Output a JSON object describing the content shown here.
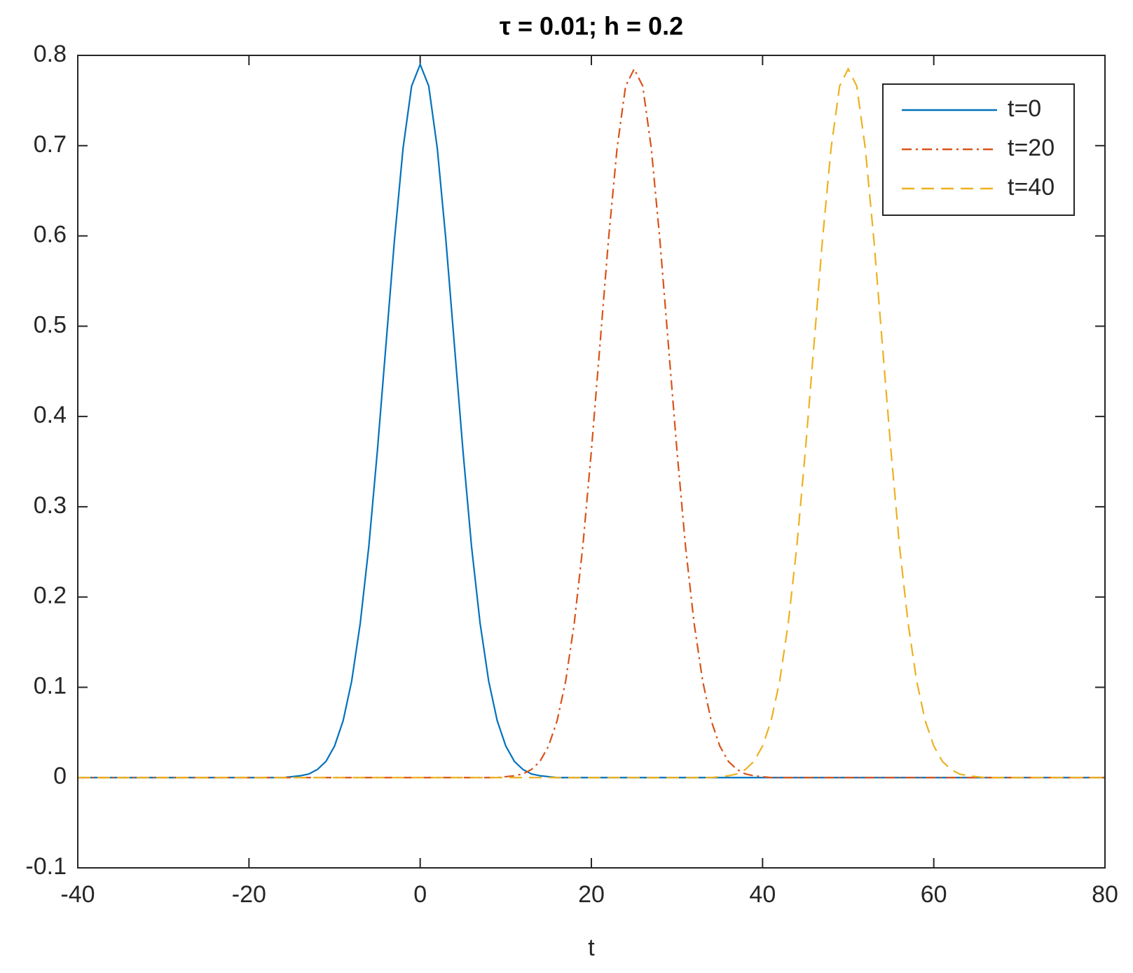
{
  "chart_data": {
    "type": "line",
    "title": "τ = 0.01; h = 0.2",
    "x_label": "t",
    "x": [
      -40,
      -39,
      -38,
      -37,
      -36,
      -35,
      -34,
      -33,
      -32,
      -31,
      -30,
      -29,
      -28,
      -27,
      -26,
      -25,
      -24,
      -23,
      -22,
      -21,
      -20,
      -19,
      -18,
      -17,
      -16,
      -15,
      -14,
      -13,
      -12,
      -11,
      -10,
      -9,
      -8,
      -7,
      -6,
      -5,
      -4,
      -3,
      -2,
      -1,
      0,
      1,
      2,
      3,
      4,
      5,
      6,
      7,
      8,
      9,
      10,
      11,
      12,
      13,
      14,
      15,
      16,
      17,
      18,
      19,
      20,
      21,
      22,
      23,
      24,
      25,
      26,
      27,
      28,
      29,
      30,
      31,
      32,
      33,
      34,
      35,
      36,
      37,
      38,
      39,
      40,
      41,
      42,
      43,
      44,
      45,
      46,
      47,
      48,
      49,
      50,
      51,
      52,
      53,
      54,
      55,
      56,
      57,
      58,
      59,
      60,
      61,
      62,
      63,
      64,
      65,
      66,
      67,
      68,
      69,
      70,
      71,
      72,
      73,
      74,
      75,
      76,
      77,
      78,
      79,
      80
    ],
    "series": [
      {
        "name": "t=0",
        "color": "#0072bd",
        "dash": "solid",
        "values": [
          0,
          0,
          0,
          0,
          0,
          0,
          0,
          0,
          0,
          0,
          0,
          0,
          0,
          0,
          0,
          0,
          0,
          0,
          0,
          0,
          0,
          0,
          0,
          0,
          0,
          0.001,
          0.002,
          0.004,
          0.009,
          0.018,
          0.035,
          0.063,
          0.107,
          0.171,
          0.256,
          0.362,
          0.479,
          0.596,
          0.697,
          0.766,
          0.79,
          0.766,
          0.697,
          0.596,
          0.479,
          0.362,
          0.256,
          0.171,
          0.107,
          0.063,
          0.035,
          0.018,
          0.009,
          0.004,
          0.002,
          0.001,
          0,
          0,
          0,
          0,
          0,
          0,
          0,
          0,
          0,
          0,
          0,
          0,
          0,
          0,
          0,
          0,
          0,
          0,
          0,
          0,
          0,
          0,
          0,
          0,
          0,
          0,
          0,
          0,
          0,
          0,
          0,
          0,
          0,
          0,
          0,
          0,
          0,
          0,
          0,
          0,
          0,
          0,
          0,
          0,
          0,
          0,
          0,
          0,
          0,
          0,
          0,
          0,
          0,
          0,
          0,
          0,
          0,
          0,
          0,
          0,
          0,
          0,
          0,
          0,
          0
        ]
      },
      {
        "name": "t=20",
        "color": "#d95319",
        "dash": "dashdot",
        "values": [
          0,
          0,
          0,
          0,
          0,
          0,
          0,
          0,
          0,
          0,
          0,
          0,
          0,
          0,
          0,
          0,
          0,
          0,
          0,
          0,
          0,
          0,
          0,
          0,
          0,
          0,
          0,
          0,
          0,
          0,
          0,
          0,
          0,
          0,
          0,
          0,
          0,
          0,
          0,
          0,
          0,
          0,
          0,
          0,
          0,
          0,
          0,
          0,
          0,
          0,
          0.001,
          0.002,
          0.004,
          0.009,
          0.018,
          0.035,
          0.063,
          0.107,
          0.171,
          0.256,
          0.362,
          0.479,
          0.596,
          0.697,
          0.766,
          0.785,
          0.766,
          0.697,
          0.596,
          0.479,
          0.362,
          0.256,
          0.171,
          0.107,
          0.063,
          0.035,
          0.018,
          0.009,
          0.004,
          0.002,
          0.001,
          0,
          0,
          0,
          0,
          0,
          0,
          0,
          0,
          0,
          0,
          0,
          0,
          0,
          0,
          0,
          0,
          0,
          0,
          0,
          0,
          0,
          0,
          0,
          0,
          0,
          0,
          0,
          0,
          0,
          0,
          0,
          0,
          0,
          0,
          0,
          0,
          0,
          0,
          0,
          0
        ]
      },
      {
        "name": "t=40",
        "color": "#edb120",
        "dash": "dashed",
        "values": [
          0,
          0,
          0,
          0,
          0,
          0,
          0,
          0,
          0,
          0,
          0,
          0,
          0,
          0,
          0,
          0,
          0,
          0,
          0,
          0,
          0,
          0,
          0,
          0,
          0,
          0,
          0,
          0,
          0,
          0,
          0,
          0,
          0,
          0,
          0,
          0,
          0,
          0,
          0,
          0,
          0,
          0,
          0,
          0,
          0,
          0,
          0,
          0,
          0,
          0,
          0,
          0,
          0,
          0,
          0,
          0,
          0,
          0,
          0,
          0,
          0,
          0,
          0,
          0,
          0,
          0,
          0,
          0,
          0,
          0,
          0,
          0,
          0,
          0,
          0,
          0.001,
          0.002,
          0.004,
          0.009,
          0.018,
          0.035,
          0.063,
          0.107,
          0.171,
          0.256,
          0.362,
          0.479,
          0.596,
          0.697,
          0.766,
          0.785,
          0.766,
          0.697,
          0.596,
          0.479,
          0.362,
          0.256,
          0.171,
          0.107,
          0.063,
          0.035,
          0.018,
          0.009,
          0.004,
          0.002,
          0.001,
          0,
          0,
          0,
          0,
          0,
          0,
          0,
          0,
          0,
          0,
          0,
          0,
          0,
          0,
          0
        ]
      }
    ],
    "xlim": [
      -40,
      80
    ],
    "xticks": [
      -40,
      -20,
      0,
      20,
      40,
      60,
      80
    ],
    "ylim": [
      -0.1,
      0.8
    ],
    "yticks": [
      -0.1,
      0,
      0.1,
      0.2,
      0.3,
      0.4,
      0.5,
      0.6,
      0.7,
      0.8
    ],
    "legend": "northeast"
  }
}
